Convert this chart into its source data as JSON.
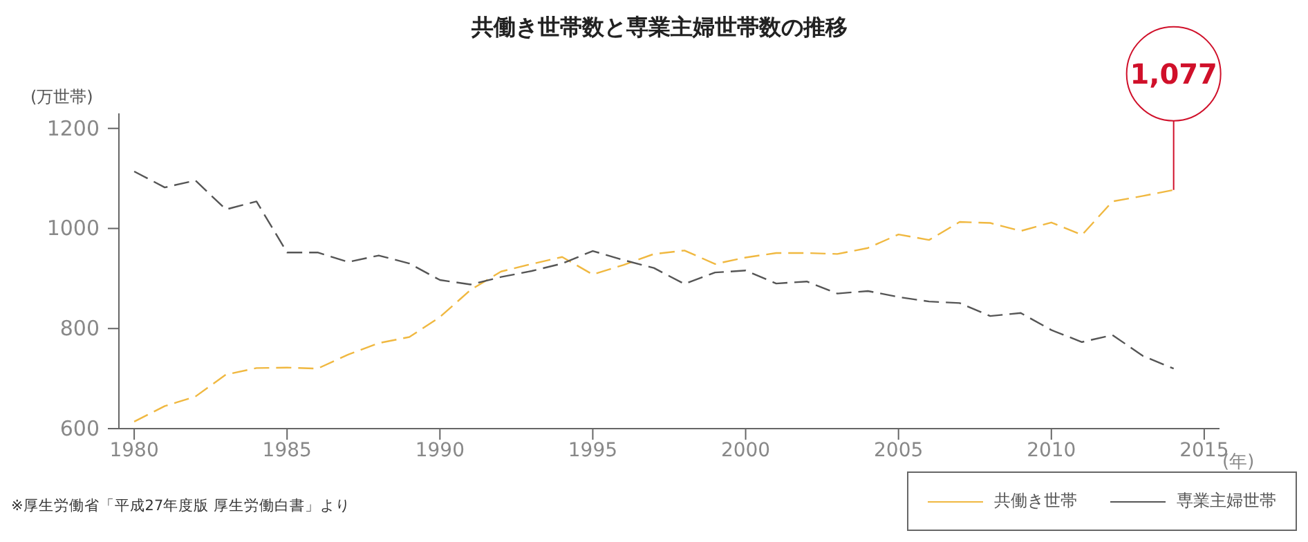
{
  "chart_data": {
    "type": "line",
    "title": "共働き世帯数と専業主婦世帯数の推移",
    "xlabel": "(年)",
    "ylabel": "(万世帯)",
    "x": [
      1980,
      1981,
      1982,
      1983,
      1984,
      1985,
      1986,
      1987,
      1988,
      1989,
      1990,
      1991,
      1992,
      1993,
      1994,
      1995,
      1996,
      1997,
      1998,
      1999,
      2000,
      2001,
      2002,
      2003,
      2004,
      2005,
      2006,
      2007,
      2008,
      2009,
      2010,
      2011,
      2012,
      2013,
      2014
    ],
    "series": [
      {
        "name": "共働き世帯",
        "color": "#f0b840",
        "values": [
          614,
          645,
          664,
          708,
          721,
          722,
          720,
          748,
          771,
          783,
          823,
          877,
          914,
          929,
          943,
          908,
          927,
          949,
          956,
          929,
          942,
          951,
          951,
          949,
          961,
          988,
          977,
          1013,
          1011,
          995,
          1012,
          987,
          1054,
          1065,
          1077
        ]
      },
      {
        "name": "専業主婦世帯",
        "color": "#555555",
        "values": [
          1114,
          1082,
          1096,
          1038,
          1054,
          952,
          952,
          933,
          946,
          930,
          897,
          888,
          903,
          915,
          930,
          955,
          937,
          921,
          889,
          912,
          916,
          890,
          894,
          870,
          875,
          863,
          854,
          851,
          825,
          831,
          797,
          773,
          787,
          745,
          720
        ]
      }
    ],
    "xlim": [
      1979.5,
      2015.5
    ],
    "xticks": [
      1980,
      1985,
      1990,
      1995,
      2000,
      2005,
      2010,
      2015
    ],
    "ylim": [
      600,
      1230
    ],
    "yticks": [
      600,
      800,
      1000,
      1200
    ],
    "grid": false,
    "legend": "bottom right",
    "line_style": "dashed",
    "marker": "none",
    "annotations": [
      {
        "text": "1,077",
        "x": 2014,
        "y": 1077
      },
      "※厚生労働省「平成27年度版 厚生労働白書」より"
    ]
  }
}
